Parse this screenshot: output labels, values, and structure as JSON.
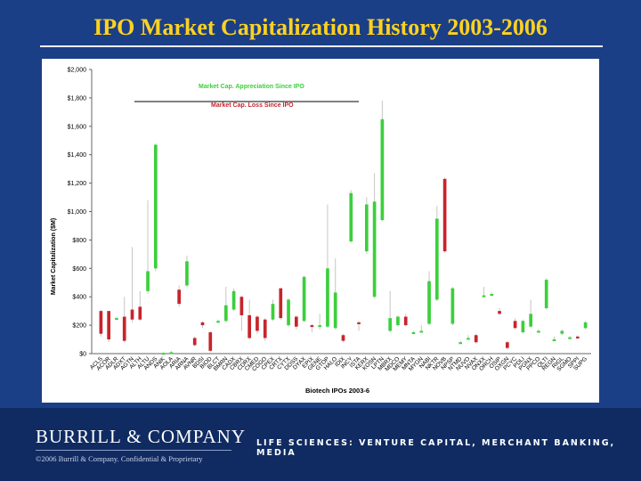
{
  "slide": {
    "title": "IPO Market Capitalization History  2003-2006",
    "logo_text": "BURRILL & COMPANY",
    "tagline": "LIFE SCIENCES: VENTURE CAPITAL, MERCHANT BANKING, MEDIA",
    "copyright": "©2006 Burrill & Company. Confidential & Proprietary"
  },
  "colors": {
    "background": "#1b3f86",
    "title": "#ffd21f",
    "appreciation": "#3ccf3c",
    "loss": "#c8242b",
    "wick": "#c6c6c6"
  },
  "chart_data": {
    "type": "candlestick",
    "xlabel": "Biotech IPOs 2003-6",
    "ylabel": "Market Capitalization ($M)",
    "ylim": [
      0,
      2000
    ],
    "yticks": [
      "$0",
      "$200",
      "$400",
      "$600",
      "$800",
      "$1,000",
      "$1,200",
      "$1,400",
      "$1,600",
      "$1,800",
      "$2,000"
    ],
    "legend": {
      "up": "Market Cap. Appreciation Since IPO",
      "down": "Market Cap. Loss Since IPO",
      "position": "top-center"
    },
    "grid": false,
    "points": [
      {
        "t": "ACLS",
        "o": 300,
        "c": 140,
        "h": 310,
        "l": 120
      },
      {
        "t": "ACOR",
        "o": 300,
        "c": 100,
        "h": 300,
        "l": 80
      },
      {
        "t": "ADLR",
        "o": 250,
        "c": 250,
        "h": 260,
        "l": 240
      },
      {
        "t": "ADXT",
        "o": 260,
        "c": 90,
        "h": 400,
        "l": 80
      },
      {
        "t": "AGTN",
        "o": 310,
        "c": 240,
        "h": 750,
        "l": 220
      },
      {
        "t": "ALTH",
        "o": 330,
        "c": 240,
        "h": 440,
        "l": 230
      },
      {
        "t": "ALTU",
        "o": 440,
        "c": 580,
        "h": 1080,
        "l": 420
      },
      {
        "t": "ANDS",
        "o": 600,
        "c": 1470,
        "h": 1480,
        "l": 580
      },
      {
        "t": "ANIK",
        "o": 5,
        "c": 5,
        "h": 10,
        "l": 0
      },
      {
        "t": "AOLA",
        "o": 10,
        "c": 10,
        "h": 20,
        "l": 0
      },
      {
        "t": "ARIA",
        "o": 450,
        "c": 350,
        "h": 480,
        "l": 330
      },
      {
        "t": "ARNA",
        "o": 480,
        "c": 650,
        "h": 690,
        "l": 470
      },
      {
        "t": "AVNR",
        "o": 110,
        "c": 60,
        "h": 120,
        "l": 50
      },
      {
        "t": "BDSI",
        "o": 220,
        "c": 200,
        "h": 230,
        "l": 180
      },
      {
        "t": "BIOD",
        "o": 150,
        "c": 20,
        "h": 160,
        "l": 10
      },
      {
        "t": "BLCT",
        "o": 230,
        "c": 230,
        "h": 240,
        "l": 220
      },
      {
        "t": "BMRN",
        "o": 230,
        "c": 340,
        "h": 470,
        "l": 220
      },
      {
        "t": "CADX",
        "o": 310,
        "c": 440,
        "h": 460,
        "l": 300
      },
      {
        "t": "CBRX",
        "o": 400,
        "c": 270,
        "h": 410,
        "l": 160
      },
      {
        "t": "CDRX",
        "o": 270,
        "c": 110,
        "h": 380,
        "l": 100
      },
      {
        "t": "CMED",
        "o": 260,
        "c": 160,
        "h": 270,
        "l": 140
      },
      {
        "t": "COGO",
        "o": 240,
        "c": 110,
        "h": 250,
        "l": 90
      },
      {
        "t": "CPEX",
        "o": 240,
        "c": 350,
        "h": 380,
        "l": 230
      },
      {
        "t": "CRTX",
        "o": 460,
        "c": 250,
        "h": 460,
        "l": 240
      },
      {
        "t": "CYTX",
        "o": 200,
        "c": 380,
        "h": 390,
        "l": 190
      },
      {
        "t": "DDSS",
        "o": 260,
        "c": 190,
        "h": 270,
        "l": 170
      },
      {
        "t": "DYAX",
        "o": 230,
        "c": 540,
        "h": 550,
        "l": 220
      },
      {
        "t": "EPIX",
        "o": 200,
        "c": 190,
        "h": 210,
        "l": 150
      },
      {
        "t": "GENE",
        "o": 200,
        "c": 200,
        "h": 280,
        "l": 170
      },
      {
        "t": "GTOP",
        "o": 190,
        "c": 600,
        "h": 1050,
        "l": 180
      },
      {
        "t": "HALO",
        "o": 180,
        "c": 430,
        "h": 670,
        "l": 170
      },
      {
        "t": "IDIX",
        "o": 130,
        "c": 90,
        "h": 140,
        "l": 80
      },
      {
        "t": "INCY",
        "o": 790,
        "c": 1130,
        "h": 1150,
        "l": 780
      },
      {
        "t": "ISTA",
        "o": 220,
        "c": 210,
        "h": 230,
        "l": 160
      },
      {
        "t": "KERX",
        "o": 720,
        "c": 1050,
        "h": 1100,
        "l": 700
      },
      {
        "t": "KOSN",
        "o": 400,
        "c": 1070,
        "h": 1270,
        "l": 390
      },
      {
        "t": "LPTN",
        "o": 940,
        "c": 1650,
        "h": 1780,
        "l": 930
      },
      {
        "t": "MBRX",
        "o": 160,
        "c": 250,
        "h": 440,
        "l": 150
      },
      {
        "t": "MDCO",
        "o": 200,
        "c": 260,
        "h": 270,
        "l": 190
      },
      {
        "t": "MEMY",
        "o": 260,
        "c": 200,
        "h": 280,
        "l": 190
      },
      {
        "t": "MNTA",
        "o": 150,
        "c": 150,
        "h": 160,
        "l": 140
      },
      {
        "t": "MYGN",
        "o": 160,
        "c": 160,
        "h": 200,
        "l": 150
      },
      {
        "t": "NABI",
        "o": 210,
        "c": 510,
        "h": 580,
        "l": 200
      },
      {
        "t": "NKTR",
        "o": 380,
        "c": 950,
        "h": 1040,
        "l": 370
      },
      {
        "t": "NOVB",
        "o": 1230,
        "c": 720,
        "h": 1240,
        "l": 710
      },
      {
        "t": "NPSP",
        "o": 210,
        "c": 460,
        "h": 470,
        "l": 200
      },
      {
        "t": "NTMD",
        "o": 80,
        "c": 80,
        "h": 90,
        "l": 70
      },
      {
        "t": "NUVO",
        "o": 110,
        "c": 110,
        "h": 130,
        "l": 100
      },
      {
        "t": "NVAX",
        "o": 130,
        "c": 80,
        "h": 140,
        "l": 70
      },
      {
        "t": "ONXX",
        "o": 410,
        "c": 410,
        "h": 470,
        "l": 400
      },
      {
        "t": "ORCH",
        "o": 420,
        "c": 420,
        "h": 430,
        "l": 410
      },
      {
        "t": "OSIP",
        "o": 300,
        "c": 280,
        "h": 320,
        "l": 270
      },
      {
        "t": "OXGN",
        "o": 80,
        "c": 40,
        "h": 90,
        "l": 30
      },
      {
        "t": "PCYC",
        "o": 230,
        "c": 180,
        "h": 250,
        "l": 170
      },
      {
        "t": "PDLI",
        "o": 150,
        "c": 230,
        "h": 240,
        "l": 140
      },
      {
        "t": "PGNX",
        "o": 190,
        "c": 280,
        "h": 380,
        "l": 180
      },
      {
        "t": "PPCO",
        "o": 160,
        "c": 160,
        "h": 170,
        "l": 150
      },
      {
        "t": "QLTI",
        "o": 320,
        "c": 520,
        "h": 530,
        "l": 310
      },
      {
        "t": "REGN",
        "o": 100,
        "c": 100,
        "h": 120,
        "l": 90
      },
      {
        "t": "RIGL",
        "o": 140,
        "c": 160,
        "h": 170,
        "l": 130
      },
      {
        "t": "SGMO",
        "o": 115,
        "c": 115,
        "h": 125,
        "l": 110
      },
      {
        "t": "SPPI",
        "o": 120,
        "c": 110,
        "h": 130,
        "l": 100
      },
      {
        "t": "SUPG",
        "o": 180,
        "c": 220,
        "h": 230,
        "l": 170
      }
    ]
  }
}
